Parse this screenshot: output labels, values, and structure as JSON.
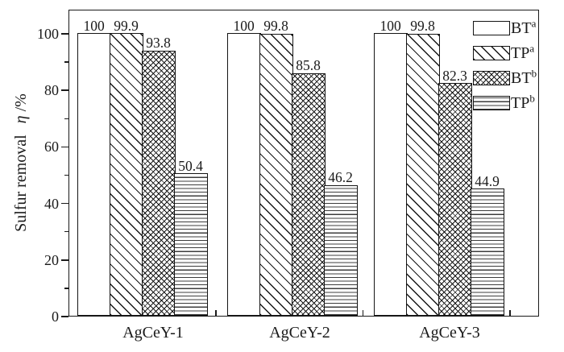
{
  "chart_data": {
    "type": "bar",
    "title": "",
    "categories": [
      "AgCeY-1",
      "AgCeY-2",
      "AgCeY-3"
    ],
    "series": [
      {
        "name": "BT",
        "sup": "a",
        "pattern": "plain",
        "values": [
          100,
          100,
          100
        ],
        "labels": [
          "100",
          "100",
          "100"
        ]
      },
      {
        "name": "TP",
        "sup": "a",
        "pattern": "diagonal",
        "values": [
          99.9,
          99.8,
          99.8
        ],
        "labels": [
          "99.9",
          "99.8",
          "99.8"
        ]
      },
      {
        "name": "BT",
        "sup": "b",
        "pattern": "crosshatch",
        "values": [
          93.8,
          85.8,
          82.3
        ],
        "labels": [
          "93.8",
          "85.8",
          "82.3"
        ]
      },
      {
        "name": "TP",
        "sup": "b",
        "pattern": "hlines",
        "values": [
          50.4,
          46.2,
          44.9
        ],
        "labels": [
          "50.4",
          "46.2",
          "44.9"
        ]
      }
    ],
    "ylabel_prefix": "Sulfur removal",
    "ylabel_symbol": "η",
    "ylabel_suffix": "/%",
    "ylim": [
      0,
      108
    ],
    "yticks_major": [
      0,
      20,
      40,
      60,
      80,
      100
    ],
    "yticks_minor": [
      10,
      30,
      50,
      70,
      90
    ],
    "grid": false,
    "legend_position": "top-right-inside",
    "bar_labels_shown": true,
    "axis_color": "#1a1a1a",
    "bar_fill": "#ffffff"
  }
}
